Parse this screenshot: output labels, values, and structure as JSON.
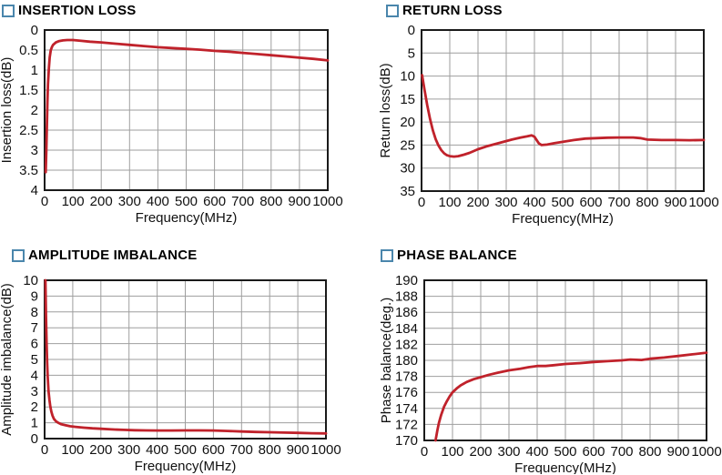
{
  "page_background": "#ffffff",
  "styles": {
    "accent_red": "#c0222b",
    "grid_color": "#9e9e9e",
    "axis_color": "#1a1a1a",
    "text_color": "#111111",
    "plot_background": "#ffffff",
    "checkbox_border": "#4a86ac",
    "title_color": "#000000"
  },
  "chart_data": [
    {
      "type": "line",
      "title": "INSERTION LOSS",
      "xlabel": "Frequency(MHz)",
      "ylabel": "Insertion loss(dB)",
      "xlim": [
        0,
        1000
      ],
      "ylim": [
        0,
        4
      ],
      "y_axis_direction": "reversed",
      "grid": true,
      "legend": "none",
      "x_ticks": [
        0,
        100,
        200,
        300,
        400,
        500,
        600,
        700,
        800,
        900,
        1000
      ],
      "y_ticks": [
        0,
        0.5,
        1,
        1.5,
        2,
        2.5,
        3,
        3.5,
        4
      ],
      "line_color": "#c0222b",
      "points": [
        [
          4,
          3.55
        ],
        [
          6,
          3.0
        ],
        [
          8,
          2.4
        ],
        [
          10,
          1.8
        ],
        [
          12,
          1.35
        ],
        [
          15,
          0.95
        ],
        [
          18,
          0.68
        ],
        [
          22,
          0.5
        ],
        [
          26,
          0.42
        ],
        [
          30,
          0.37
        ],
        [
          40,
          0.31
        ],
        [
          50,
          0.28
        ],
        [
          65,
          0.26
        ],
        [
          80,
          0.25
        ],
        [
          100,
          0.25
        ],
        [
          130,
          0.27
        ],
        [
          160,
          0.29
        ],
        [
          200,
          0.31
        ],
        [
          250,
          0.34
        ],
        [
          300,
          0.37
        ],
        [
          350,
          0.4
        ],
        [
          400,
          0.43
        ],
        [
          450,
          0.45
        ],
        [
          500,
          0.47
        ],
        [
          550,
          0.49
        ],
        [
          600,
          0.52
        ],
        [
          650,
          0.54
        ],
        [
          700,
          0.57
        ],
        [
          750,
          0.6
        ],
        [
          800,
          0.63
        ],
        [
          850,
          0.66
        ],
        [
          900,
          0.69
        ],
        [
          950,
          0.72
        ],
        [
          1000,
          0.76
        ]
      ]
    },
    {
      "type": "line",
      "title": "RETURN LOSS",
      "xlabel": "Frequency(MHz)",
      "ylabel": "Return loss(dB)",
      "xlim": [
        0,
        1000
      ],
      "ylim": [
        0,
        35
      ],
      "y_axis_direction": "reversed",
      "grid": true,
      "legend": "none",
      "x_ticks": [
        0,
        100,
        200,
        300,
        400,
        500,
        600,
        700,
        800,
        900,
        1000
      ],
      "y_ticks": [
        0,
        5,
        10,
        15,
        20,
        25,
        30,
        35
      ],
      "line_color": "#c0222b",
      "points": [
        [
          2,
          9.8
        ],
        [
          10,
          12.8
        ],
        [
          20,
          16.3
        ],
        [
          30,
          19.3
        ],
        [
          40,
          21.8
        ],
        [
          50,
          23.7
        ],
        [
          60,
          25.1
        ],
        [
          70,
          26.1
        ],
        [
          80,
          26.8
        ],
        [
          90,
          27.2
        ],
        [
          100,
          27.4
        ],
        [
          115,
          27.5
        ],
        [
          130,
          27.4
        ],
        [
          150,
          27.1
        ],
        [
          170,
          26.7
        ],
        [
          200,
          25.9
        ],
        [
          230,
          25.3
        ],
        [
          260,
          24.8
        ],
        [
          290,
          24.3
        ],
        [
          320,
          23.8
        ],
        [
          350,
          23.4
        ],
        [
          375,
          23.1
        ],
        [
          390,
          22.9
        ],
        [
          400,
          23.2
        ],
        [
          415,
          24.6
        ],
        [
          425,
          25.0
        ],
        [
          445,
          24.9
        ],
        [
          470,
          24.6
        ],
        [
          500,
          24.3
        ],
        [
          540,
          23.9
        ],
        [
          580,
          23.6
        ],
        [
          620,
          23.5
        ],
        [
          660,
          23.4
        ],
        [
          700,
          23.35
        ],
        [
          750,
          23.35
        ],
        [
          775,
          23.5
        ],
        [
          800,
          23.8
        ],
        [
          850,
          23.9
        ],
        [
          900,
          23.9
        ],
        [
          950,
          23.95
        ],
        [
          1000,
          23.9
        ]
      ]
    },
    {
      "type": "line",
      "title": "AMPLITUDE IMBALANCE",
      "xlabel": "Frequency(MHz)",
      "ylabel": "Amplitude imbalance(dB)",
      "xlim": [
        0,
        1000
      ],
      "ylim": [
        0,
        10
      ],
      "y_axis_direction": "normal",
      "grid": true,
      "legend": "none",
      "x_ticks": [
        0,
        100,
        200,
        300,
        400,
        500,
        600,
        700,
        800,
        900,
        1000
      ],
      "y_ticks": [
        0,
        1,
        2,
        3,
        4,
        5,
        6,
        7,
        8,
        9,
        10
      ],
      "line_color": "#c0222b",
      "points": [
        [
          3,
          10
        ],
        [
          5,
          7.8
        ],
        [
          7,
          6.0
        ],
        [
          9,
          4.8
        ],
        [
          11,
          3.9
        ],
        [
          14,
          3.0
        ],
        [
          17,
          2.45
        ],
        [
          20,
          2.05
        ],
        [
          24,
          1.7
        ],
        [
          28,
          1.45
        ],
        [
          33,
          1.25
        ],
        [
          40,
          1.1
        ],
        [
          50,
          0.98
        ],
        [
          60,
          0.9
        ],
        [
          75,
          0.84
        ],
        [
          90,
          0.78
        ],
        [
          110,
          0.74
        ],
        [
          140,
          0.69
        ],
        [
          170,
          0.65
        ],
        [
          200,
          0.62
        ],
        [
          240,
          0.58
        ],
        [
          280,
          0.55
        ],
        [
          320,
          0.53
        ],
        [
          360,
          0.52
        ],
        [
          400,
          0.51
        ],
        [
          450,
          0.51
        ],
        [
          500,
          0.52
        ],
        [
          550,
          0.52
        ],
        [
          600,
          0.51
        ],
        [
          650,
          0.48
        ],
        [
          700,
          0.45
        ],
        [
          750,
          0.42
        ],
        [
          800,
          0.4
        ],
        [
          850,
          0.38
        ],
        [
          900,
          0.36
        ],
        [
          950,
          0.34
        ],
        [
          1000,
          0.33
        ]
      ]
    },
    {
      "type": "line",
      "title": "PHASE BALANCE",
      "xlabel": "Frequency(MHz)",
      "ylabel": "Phase balance(deg.)",
      "xlim": [
        0,
        1000
      ],
      "ylim": [
        170,
        190
      ],
      "y_axis_direction": "normal",
      "grid": true,
      "legend": "none",
      "x_ticks": [
        0,
        100,
        200,
        300,
        400,
        500,
        600,
        700,
        800,
        900,
        1000
      ],
      "y_ticks": [
        170,
        172,
        174,
        176,
        178,
        180,
        182,
        184,
        186,
        188,
        190
      ],
      "line_color": "#c0222b",
      "points": [
        [
          40,
          170.0
        ],
        [
          46,
          171.2
        ],
        [
          52,
          172.2
        ],
        [
          60,
          173.2
        ],
        [
          70,
          174.2
        ],
        [
          80,
          174.9
        ],
        [
          90,
          175.5
        ],
        [
          100,
          176.0
        ],
        [
          115,
          176.5
        ],
        [
          130,
          176.9
        ],
        [
          150,
          177.3
        ],
        [
          175,
          177.65
        ],
        [
          200,
          177.9
        ],
        [
          230,
          178.2
        ],
        [
          260,
          178.45
        ],
        [
          300,
          178.75
        ],
        [
          340,
          178.95
        ],
        [
          370,
          179.15
        ],
        [
          400,
          179.3
        ],
        [
          430,
          179.3
        ],
        [
          460,
          179.4
        ],
        [
          500,
          179.55
        ],
        [
          550,
          179.65
        ],
        [
          600,
          179.8
        ],
        [
          650,
          179.9
        ],
        [
          700,
          180.0
        ],
        [
          730,
          180.1
        ],
        [
          770,
          180.05
        ],
        [
          800,
          180.2
        ],
        [
          850,
          180.35
        ],
        [
          900,
          180.55
        ],
        [
          950,
          180.75
        ],
        [
          1000,
          180.95
        ]
      ]
    }
  ]
}
